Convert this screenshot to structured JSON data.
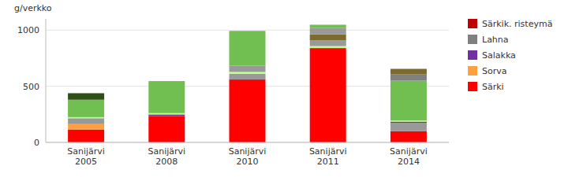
{
  "chart_data": {
    "type": "bar",
    "stacked": true,
    "y_label": "g/verkko",
    "categories": [
      "Sanijärvi\n2005",
      "Sanijärvi\n2008",
      "Sanijärvi\n2010",
      "Sanijärvi\n2011",
      "Sanijärvi\n2014"
    ],
    "series": [
      {
        "name": "Särki",
        "color": "#FF0000",
        "values": [
          115,
          235,
          560,
          840,
          100
        ]
      },
      {
        "name": "Sorva",
        "color": "#FFA040",
        "values": [
          48,
          0,
          0,
          0,
          0
        ]
      },
      {
        "color": "#999999",
        "values": [
          52,
          0,
          50,
          0,
          75
        ]
      },
      {
        "name": "Salakka",
        "color": "#7030A0",
        "values": [
          0,
          14,
          0,
          0,
          10
        ]
      },
      {
        "color": "#BFFF80",
        "values": [
          10,
          12,
          18,
          18,
          10
        ]
      },
      {
        "color": "#70BF50",
        "values": [
          155,
          285,
          0,
          0,
          355
        ]
      },
      {
        "color": "#999999",
        "values": [
          0,
          0,
          55,
          50,
          0
        ]
      },
      {
        "color": "#70BF50",
        "values": [
          0,
          0,
          310,
          0,
          0
        ]
      },
      {
        "color": "#2D5016",
        "values": [
          58,
          0,
          0,
          0,
          0
        ]
      },
      {
        "name": "Lahna",
        "color": "#808080",
        "values": [
          0,
          0,
          0,
          0,
          55
        ]
      },
      {
        "color": "#7B6B30",
        "values": [
          0,
          0,
          0,
          55,
          50
        ]
      },
      {
        "color": "#999999",
        "values": [
          0,
          0,
          0,
          55,
          0
        ]
      },
      {
        "color": "#70BF50",
        "values": [
          0,
          0,
          0,
          30,
          0
        ]
      },
      {
        "name": "Särkik. risteymä",
        "color": "#C00000",
        "values": [
          0,
          0,
          0,
          0,
          0
        ]
      }
    ],
    "ylim": [
      0,
      1100
    ],
    "yticks": [
      0,
      500,
      1000
    ],
    "grid": true,
    "legend": "right"
  }
}
